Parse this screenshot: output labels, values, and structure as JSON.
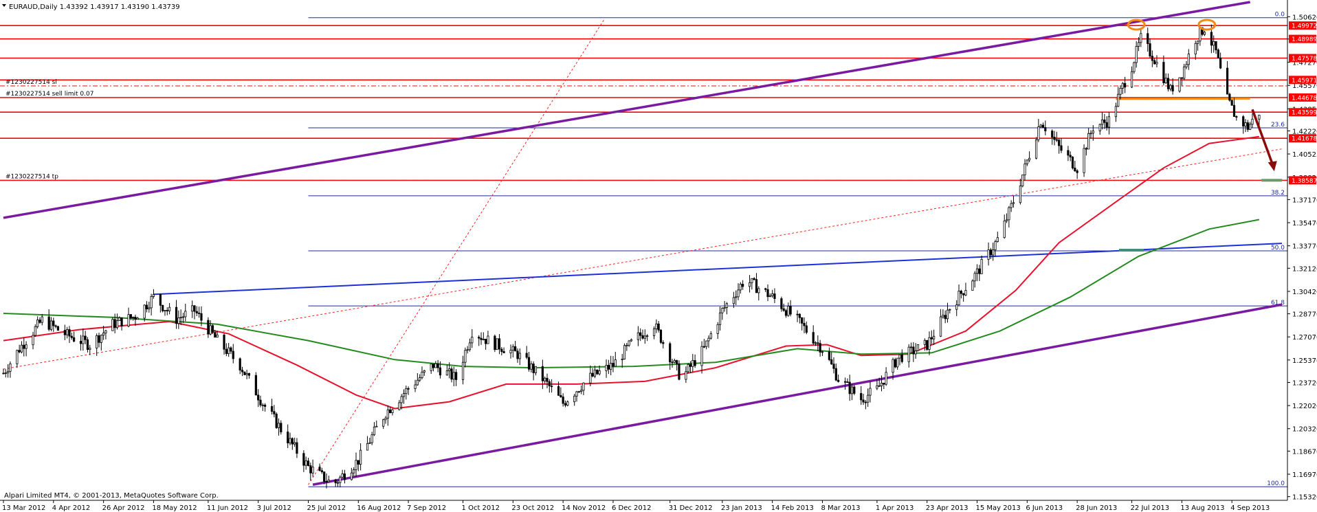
{
  "chart_data": {
    "type": "candlestick",
    "symbol_header": "EURAUD,Daily  1.43392 1.43917 1.43190 1.43739",
    "ohlc_last": {
      "open": 1.43392,
      "high": 1.43917,
      "low": 1.4319,
      "close": 1.43739
    },
    "footer": "Alpari Limited MT4, © 2001-2013, MetaQuotes Software Corp.",
    "ylim": [
      1.1505,
      1.5185
    ],
    "x_start_date": "2012-03-13",
    "x_end_date": "2013-09-26",
    "y_ticks": [
      "1.50620",
      "1.48980",
      "1.47270",
      "1.45570",
      "1.43850",
      "1.42220",
      "1.40525",
      "1.38820",
      "1.37170",
      "1.35470",
      "1.33770",
      "1.32120",
      "1.30420",
      "1.28770",
      "1.27070",
      "1.25370",
      "1.23720",
      "1.22020",
      "1.20320",
      "1.18670",
      "1.16970",
      "1.15320"
    ],
    "x_ticks": [
      {
        "label": "13 Mar 2012",
        "date": "2012-03-13"
      },
      {
        "label": "4 Apr 2012",
        "date": "2012-04-04"
      },
      {
        "label": "26 Apr 2012",
        "date": "2012-04-26"
      },
      {
        "label": "18 May 2012",
        "date": "2012-05-18"
      },
      {
        "label": "11 Jun 2012",
        "date": "2012-06-11"
      },
      {
        "label": "3 Jul 2012",
        "date": "2012-07-03"
      },
      {
        "label": "25 Jul 2012",
        "date": "2012-07-25"
      },
      {
        "label": "16 Aug 2012",
        "date": "2012-08-16"
      },
      {
        "label": "7 Sep 2012",
        "date": "2012-09-07"
      },
      {
        "label": "1 Oct 2012",
        "date": "2012-10-01"
      },
      {
        "label": "23 Oct 2012",
        "date": "2012-10-23"
      },
      {
        "label": "14 Nov 2012",
        "date": "2012-11-14"
      },
      {
        "label": "6 Dec 2012",
        "date": "2012-12-06"
      },
      {
        "label": "31 Dec 2012",
        "date": "2012-12-31"
      },
      {
        "label": "23 Jan 2013",
        "date": "2013-01-23"
      },
      {
        "label": "14 Feb 2013",
        "date": "2013-02-14"
      },
      {
        "label": "8 Mar 2013",
        "date": "2013-03-08"
      },
      {
        "label": "1 Apr 2013",
        "date": "2013-04-01"
      },
      {
        "label": "23 Apr 2013",
        "date": "2013-04-23"
      },
      {
        "label": "15 May 2013",
        "date": "2013-05-15"
      },
      {
        "label": "6 Jun 2013",
        "date": "2013-06-06"
      },
      {
        "label": "28 Jun 2013",
        "date": "2013-06-28"
      },
      {
        "label": "22 Jul 2013",
        "date": "2013-07-22"
      },
      {
        "label": "13 Aug 2013",
        "date": "2013-08-13"
      },
      {
        "label": "4 Sep 2013",
        "date": "2013-09-04"
      }
    ],
    "price_path": [
      {
        "date": "2012-03-13",
        "y": 1.244
      },
      {
        "date": "2012-03-20",
        "y": 1.262
      },
      {
        "date": "2012-03-30",
        "y": 1.283
      },
      {
        "date": "2012-04-10",
        "y": 1.272
      },
      {
        "date": "2012-04-20",
        "y": 1.265
      },
      {
        "date": "2012-04-30",
        "y": 1.28
      },
      {
        "date": "2012-05-10",
        "y": 1.286
      },
      {
        "date": "2012-05-18",
        "y": 1.3
      },
      {
        "date": "2012-05-28",
        "y": 1.284
      },
      {
        "date": "2012-06-05",
        "y": 1.29
      },
      {
        "date": "2012-06-15",
        "y": 1.268
      },
      {
        "date": "2012-06-25",
        "y": 1.25
      },
      {
        "date": "2012-07-05",
        "y": 1.222
      },
      {
        "date": "2012-07-15",
        "y": 1.198
      },
      {
        "date": "2012-07-25",
        "y": 1.175
      },
      {
        "date": "2012-08-05",
        "y": 1.162
      },
      {
        "date": "2012-08-16",
        "y": 1.18
      },
      {
        "date": "2012-08-28",
        "y": 1.215
      },
      {
        "date": "2012-09-07",
        "y": 1.233
      },
      {
        "date": "2012-09-18",
        "y": 1.25
      },
      {
        "date": "2012-09-28",
        "y": 1.24
      },
      {
        "date": "2012-10-05",
        "y": 1.275
      },
      {
        "date": "2012-10-12",
        "y": 1.268
      },
      {
        "date": "2012-10-25",
        "y": 1.258
      },
      {
        "date": "2012-11-05",
        "y": 1.24
      },
      {
        "date": "2012-11-14",
        "y": 1.222
      },
      {
        "date": "2012-11-25",
        "y": 1.24
      },
      {
        "date": "2012-12-06",
        "y": 1.25
      },
      {
        "date": "2012-12-15",
        "y": 1.268
      },
      {
        "date": "2012-12-24",
        "y": 1.28
      },
      {
        "date": "2013-01-05",
        "y": 1.24
      },
      {
        "date": "2013-01-15",
        "y": 1.262
      },
      {
        "date": "2013-01-23",
        "y": 1.29
      },
      {
        "date": "2013-02-02",
        "y": 1.313
      },
      {
        "date": "2013-02-14",
        "y": 1.3
      },
      {
        "date": "2013-02-25",
        "y": 1.283
      },
      {
        "date": "2013-03-08",
        "y": 1.262
      },
      {
        "date": "2013-03-15",
        "y": 1.24
      },
      {
        "date": "2013-03-25",
        "y": 1.225
      },
      {
        "date": "2013-04-01",
        "y": 1.232
      },
      {
        "date": "2013-04-10",
        "y": 1.255
      },
      {
        "date": "2013-04-23",
        "y": 1.265
      },
      {
        "date": "2013-05-02",
        "y": 1.29
      },
      {
        "date": "2013-05-15",
        "y": 1.318
      },
      {
        "date": "2013-05-25",
        "y": 1.345
      },
      {
        "date": "2013-06-01",
        "y": 1.375
      },
      {
        "date": "2013-06-06",
        "y": 1.4
      },
      {
        "date": "2013-06-12",
        "y": 1.43
      },
      {
        "date": "2013-06-20",
        "y": 1.41
      },
      {
        "date": "2013-06-28",
        "y": 1.395
      },
      {
        "date": "2013-07-05",
        "y": 1.425
      },
      {
        "date": "2013-07-12",
        "y": 1.43
      },
      {
        "date": "2013-07-18",
        "y": 1.455
      },
      {
        "date": "2013-07-22",
        "y": 1.47
      },
      {
        "date": "2013-07-26",
        "y": 1.49
      },
      {
        "date": "2013-08-01",
        "y": 1.475
      },
      {
        "date": "2013-08-08",
        "y": 1.452
      },
      {
        "date": "2013-08-13",
        "y": 1.465
      },
      {
        "date": "2013-08-19",
        "y": 1.49
      },
      {
        "date": "2013-08-23",
        "y": 1.498
      },
      {
        "date": "2013-08-28",
        "y": 1.48
      },
      {
        "date": "2013-09-02",
        "y": 1.445
      },
      {
        "date": "2013-09-06",
        "y": 1.432
      },
      {
        "date": "2013-09-11",
        "y": 1.425
      },
      {
        "date": "2013-09-16",
        "y": 1.436
      }
    ],
    "ma_red": [
      {
        "date": "2012-03-13",
        "y": 1.268
      },
      {
        "date": "2012-04-15",
        "y": 1.276
      },
      {
        "date": "2012-05-25",
        "y": 1.282
      },
      {
        "date": "2012-06-20",
        "y": 1.273
      },
      {
        "date": "2012-07-20",
        "y": 1.25
      },
      {
        "date": "2012-08-15",
        "y": 1.228
      },
      {
        "date": "2012-09-01",
        "y": 1.218
      },
      {
        "date": "2012-09-25",
        "y": 1.223
      },
      {
        "date": "2012-10-20",
        "y": 1.236
      },
      {
        "date": "2012-11-20",
        "y": 1.236
      },
      {
        "date": "2012-12-20",
        "y": 1.238
      },
      {
        "date": "2013-01-20",
        "y": 1.248
      },
      {
        "date": "2013-02-20",
        "y": 1.264
      },
      {
        "date": "2013-03-10",
        "y": 1.265
      },
      {
        "date": "2013-03-25",
        "y": 1.257
      },
      {
        "date": "2013-04-15",
        "y": 1.258
      },
      {
        "date": "2013-05-10",
        "y": 1.275
      },
      {
        "date": "2013-06-01",
        "y": 1.305
      },
      {
        "date": "2013-06-20",
        "y": 1.34
      },
      {
        "date": "2013-07-15",
        "y": 1.37
      },
      {
        "date": "2013-08-05",
        "y": 1.395
      },
      {
        "date": "2013-08-25",
        "y": 1.413
      },
      {
        "date": "2013-09-16",
        "y": 1.418
      }
    ],
    "ma_green": [
      {
        "date": "2012-03-13",
        "y": 1.288
      },
      {
        "date": "2012-05-01",
        "y": 1.285
      },
      {
        "date": "2012-06-15",
        "y": 1.28
      },
      {
        "date": "2012-07-25",
        "y": 1.268
      },
      {
        "date": "2012-09-01",
        "y": 1.254
      },
      {
        "date": "2012-10-01",
        "y": 1.249
      },
      {
        "date": "2012-11-01",
        "y": 1.248
      },
      {
        "date": "2012-12-15",
        "y": 1.249
      },
      {
        "date": "2013-01-20",
        "y": 1.252
      },
      {
        "date": "2013-02-25",
        "y": 1.262
      },
      {
        "date": "2013-03-25",
        "y": 1.258
      },
      {
        "date": "2013-04-25",
        "y": 1.259
      },
      {
        "date": "2013-05-25",
        "y": 1.275
      },
      {
        "date": "2013-06-25",
        "y": 1.3
      },
      {
        "date": "2013-07-25",
        "y": 1.33
      },
      {
        "date": "2013-08-25",
        "y": 1.35
      },
      {
        "date": "2013-09-16",
        "y": 1.357
      }
    ],
    "horizontal_levels_red": [
      "1.49972",
      "1.48989",
      "1.47578",
      "1.45971",
      "1.44678",
      "1.43599",
      "1.41678",
      "1.38587"
    ],
    "price_label_values": [
      "1.49972",
      "1.48989",
      "1.47578",
      "1.45971",
      "1.44678",
      "1.43599",
      "1.41678",
      "1.38587"
    ],
    "fibonacci": {
      "start_date": "2012-07-25",
      "end_date": "2013-09-26",
      "levels": [
        {
          "label": "0.0",
          "price": 1.5055
        },
        {
          "label": "23.6",
          "price": 1.4245
        },
        {
          "label": "38.2",
          "price": 1.3745
        },
        {
          "label": "50.0",
          "price": 1.334
        },
        {
          "label": "61.8",
          "price": 1.2935
        },
        {
          "label": "100.0",
          "price": 1.1605
        }
      ]
    },
    "order_lines": [
      {
        "label": "#1230227514 sl",
        "price": 1.4553
      },
      {
        "label": "#1230227514 sell limit 0.07",
        "price": 1.4467
      },
      {
        "label": "#1230227514 tp",
        "price": 1.3859
      }
    ],
    "trendlines": {
      "purple_upper": [
        {
          "date": "2012-03-13",
          "y": 1.3583
        },
        {
          "date": "2013-09-12",
          "y": 1.517
        }
      ],
      "purple_lower": [
        {
          "date": "2012-07-27",
          "y": 1.162
        },
        {
          "date": "2013-09-26",
          "y": 1.2945
        }
      ],
      "blue_channel": [
        {
          "date": "2012-05-18",
          "y": 1.302
        },
        {
          "date": "2013-09-26",
          "y": 1.3395
        }
      ],
      "red_dotted_diagonal": [
        {
          "date": "2012-07-25",
          "y": 1.162
        },
        {
          "date": "2012-12-02",
          "y": 1.504
        }
      ],
      "red_dotted_long": [
        {
          "date": "2012-03-13",
          "y": 1.247
        },
        {
          "date": "2013-09-26",
          "y": 1.409
        }
      ],
      "orange_neckline": [
        {
          "date": "2013-07-15",
          "y": 1.4458
        },
        {
          "date": "2013-09-12",
          "y": 1.446
        }
      ]
    },
    "annotations": {
      "top1": {
        "date": "2013-07-24",
        "y": 1.5003
      },
      "top2": {
        "date": "2013-08-24",
        "y": 1.5003
      },
      "arrow_from": {
        "date": "2013-09-13",
        "y": 1.438
      },
      "arrow_to": {
        "date": "2013-09-22",
        "y": 1.393
      }
    },
    "colors": {
      "candle": "#000000",
      "price_levels": "#ff0000",
      "price_label_bg": "#ff0000",
      "fib": "#1b2a9e",
      "trend_purple": "#7a1aa0",
      "trend_blue": "#1d2fd8",
      "ma_red": "#e8102a",
      "ma_green": "#238a1e",
      "order_line": "#ff0000",
      "orange": "#f28a19",
      "arrow": "#8b0a0a"
    }
  }
}
